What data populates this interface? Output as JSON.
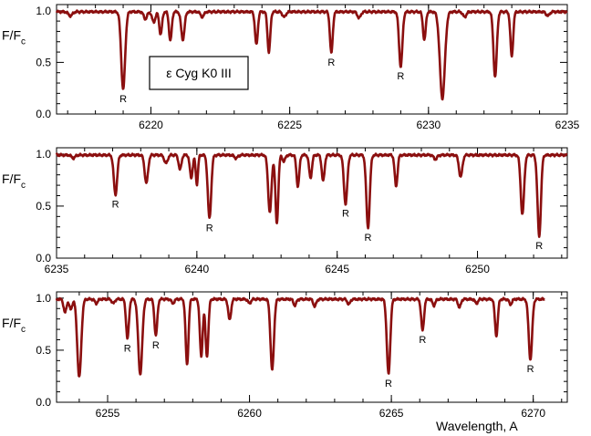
{
  "figure": {
    "star_label": "ε Cyg  K0 III",
    "xlabel": "Wavelength, A",
    "ylabel_main": "F/F",
    "ylabel_sub": "c",
    "colors": {
      "spectrum": "#8b0f0f",
      "axes": "#000000",
      "background": "#ffffff"
    }
  },
  "chart_data": [
    {
      "type": "line",
      "panel": 1,
      "xlim": [
        6216.6,
        6235
      ],
      "ylim": [
        0.0,
        1.06
      ],
      "xticks": [
        6220,
        6225,
        6230,
        6235
      ],
      "yticks": [
        0.0,
        0.5,
        1.0
      ],
      "ytick_labels": [
        "0.0",
        "0.5",
        "1.0"
      ],
      "continuum": 1.0,
      "lines": [
        {
          "x": 6217.1,
          "depth": 0.04,
          "w": 0.07
        },
        {
          "x": 6219.0,
          "depth": 0.75,
          "w": 0.07,
          "label": "R"
        },
        {
          "x": 6219.8,
          "depth": 0.07,
          "w": 0.06
        },
        {
          "x": 6220.1,
          "depth": 0.1,
          "w": 0.06
        },
        {
          "x": 6220.35,
          "depth": 0.22,
          "w": 0.05
        },
        {
          "x": 6220.7,
          "depth": 0.28,
          "w": 0.05
        },
        {
          "x": 6221.15,
          "depth": 0.27,
          "w": 0.06
        },
        {
          "x": 6221.85,
          "depth": 0.05,
          "w": 0.06
        },
        {
          "x": 6223.8,
          "depth": 0.32,
          "w": 0.05
        },
        {
          "x": 6224.25,
          "depth": 0.39,
          "w": 0.05
        },
        {
          "x": 6224.8,
          "depth": 0.05,
          "w": 0.06
        },
        {
          "x": 6226.5,
          "depth": 0.4,
          "w": 0.05,
          "label": "R"
        },
        {
          "x": 6227.5,
          "depth": 0.06,
          "w": 0.06
        },
        {
          "x": 6229.0,
          "depth": 0.53,
          "w": 0.06,
          "label": "R"
        },
        {
          "x": 6229.85,
          "depth": 0.27,
          "w": 0.05
        },
        {
          "x": 6230.5,
          "depth": 0.84,
          "w": 0.09
        },
        {
          "x": 6231.3,
          "depth": 0.05,
          "w": 0.06
        },
        {
          "x": 6232.4,
          "depth": 0.63,
          "w": 0.06
        },
        {
          "x": 6233.0,
          "depth": 0.43,
          "w": 0.05
        },
        {
          "x": 6234.3,
          "depth": 0.04,
          "w": 0.06
        }
      ]
    },
    {
      "type": "line",
      "panel": 2,
      "xlim": [
        6235,
        6253.2
      ],
      "ylim": [
        0.0,
        1.06
      ],
      "xticks": [
        6235,
        6240,
        6245,
        6250
      ],
      "yticks": [
        0.0,
        0.5,
        1.0
      ],
      "ytick_labels": [
        "0.0",
        "0.5",
        "1.0"
      ],
      "continuum": 1.0,
      "lines": [
        {
          "x": 6235.6,
          "depth": 0.03,
          "w": 0.06
        },
        {
          "x": 6237.1,
          "depth": 0.38,
          "w": 0.06,
          "label": "R"
        },
        {
          "x": 6238.2,
          "depth": 0.27,
          "w": 0.06
        },
        {
          "x": 6238.9,
          "depth": 0.08,
          "w": 0.06
        },
        {
          "x": 6239.4,
          "depth": 0.14,
          "w": 0.05
        },
        {
          "x": 6239.8,
          "depth": 0.22,
          "w": 0.05
        },
        {
          "x": 6240.0,
          "depth": 0.28,
          "w": 0.04
        },
        {
          "x": 6240.45,
          "depth": 0.61,
          "w": 0.06,
          "label": "R"
        },
        {
          "x": 6241.4,
          "depth": 0.03,
          "w": 0.06
        },
        {
          "x": 6242.6,
          "depth": 0.55,
          "w": 0.06
        },
        {
          "x": 6242.85,
          "depth": 0.66,
          "w": 0.05
        },
        {
          "x": 6243.1,
          "depth": 0.06,
          "w": 0.05
        },
        {
          "x": 6243.6,
          "depth": 0.3,
          "w": 0.05
        },
        {
          "x": 6244.05,
          "depth": 0.22,
          "w": 0.05
        },
        {
          "x": 6244.5,
          "depth": 0.25,
          "w": 0.05
        },
        {
          "x": 6245.3,
          "depth": 0.47,
          "w": 0.06,
          "label": "R"
        },
        {
          "x": 6246.1,
          "depth": 0.7,
          "w": 0.06,
          "label": "R"
        },
        {
          "x": 6247.1,
          "depth": 0.3,
          "w": 0.05
        },
        {
          "x": 6248.5,
          "depth": 0.04,
          "w": 0.06
        },
        {
          "x": 6249.4,
          "depth": 0.21,
          "w": 0.06
        },
        {
          "x": 6251.6,
          "depth": 0.57,
          "w": 0.06
        },
        {
          "x": 6252.2,
          "depth": 0.78,
          "w": 0.06,
          "label": "R"
        }
      ]
    },
    {
      "type": "line",
      "panel": 3,
      "xlim": [
        6253.2,
        6271.2
      ],
      "ylim": [
        0.0,
        1.06
      ],
      "xticks": [
        6255,
        6260,
        6265,
        6270
      ],
      "yticks": [
        0.0,
        0.5,
        1.0
      ],
      "ytick_labels": [
        "0.0",
        "0.5",
        "1.0"
      ],
      "continuum": 1.0,
      "x_end": 6270.4,
      "lines": [
        {
          "x": 6253.5,
          "depth": 0.13,
          "w": 0.05
        },
        {
          "x": 6253.7,
          "depth": 0.1,
          "w": 0.05
        },
        {
          "x": 6254.0,
          "depth": 0.75,
          "w": 0.07
        },
        {
          "x": 6254.6,
          "depth": 0.04,
          "w": 0.05
        },
        {
          "x": 6255.2,
          "depth": 0.04,
          "w": 0.05
        },
        {
          "x": 6255.7,
          "depth": 0.38,
          "w": 0.05,
          "label": "R"
        },
        {
          "x": 6256.15,
          "depth": 0.72,
          "w": 0.07
        },
        {
          "x": 6256.7,
          "depth": 0.35,
          "w": 0.05,
          "label": "R"
        },
        {
          "x": 6257.3,
          "depth": 0.04,
          "w": 0.05
        },
        {
          "x": 6257.8,
          "depth": 0.63,
          "w": 0.05
        },
        {
          "x": 6258.3,
          "depth": 0.55,
          "w": 0.05
        },
        {
          "x": 6258.5,
          "depth": 0.55,
          "w": 0.05
        },
        {
          "x": 6259.3,
          "depth": 0.2,
          "w": 0.05
        },
        {
          "x": 6260.0,
          "depth": 0.04,
          "w": 0.05
        },
        {
          "x": 6260.8,
          "depth": 0.68,
          "w": 0.06
        },
        {
          "x": 6261.6,
          "depth": 0.06,
          "w": 0.05
        },
        {
          "x": 6262.3,
          "depth": 0.07,
          "w": 0.05
        },
        {
          "x": 6263.5,
          "depth": 0.05,
          "w": 0.05
        },
        {
          "x": 6264.9,
          "depth": 0.72,
          "w": 0.06,
          "label": "R"
        },
        {
          "x": 6266.1,
          "depth": 0.3,
          "w": 0.05,
          "label": "R"
        },
        {
          "x": 6266.5,
          "depth": 0.06,
          "w": 0.05
        },
        {
          "x": 6267.4,
          "depth": 0.08,
          "w": 0.05
        },
        {
          "x": 6268.0,
          "depth": 0.04,
          "w": 0.05
        },
        {
          "x": 6268.7,
          "depth": 0.35,
          "w": 0.05
        },
        {
          "x": 6269.2,
          "depth": 0.05,
          "w": 0.05
        },
        {
          "x": 6269.9,
          "depth": 0.58,
          "w": 0.06,
          "label": "R"
        }
      ]
    }
  ]
}
